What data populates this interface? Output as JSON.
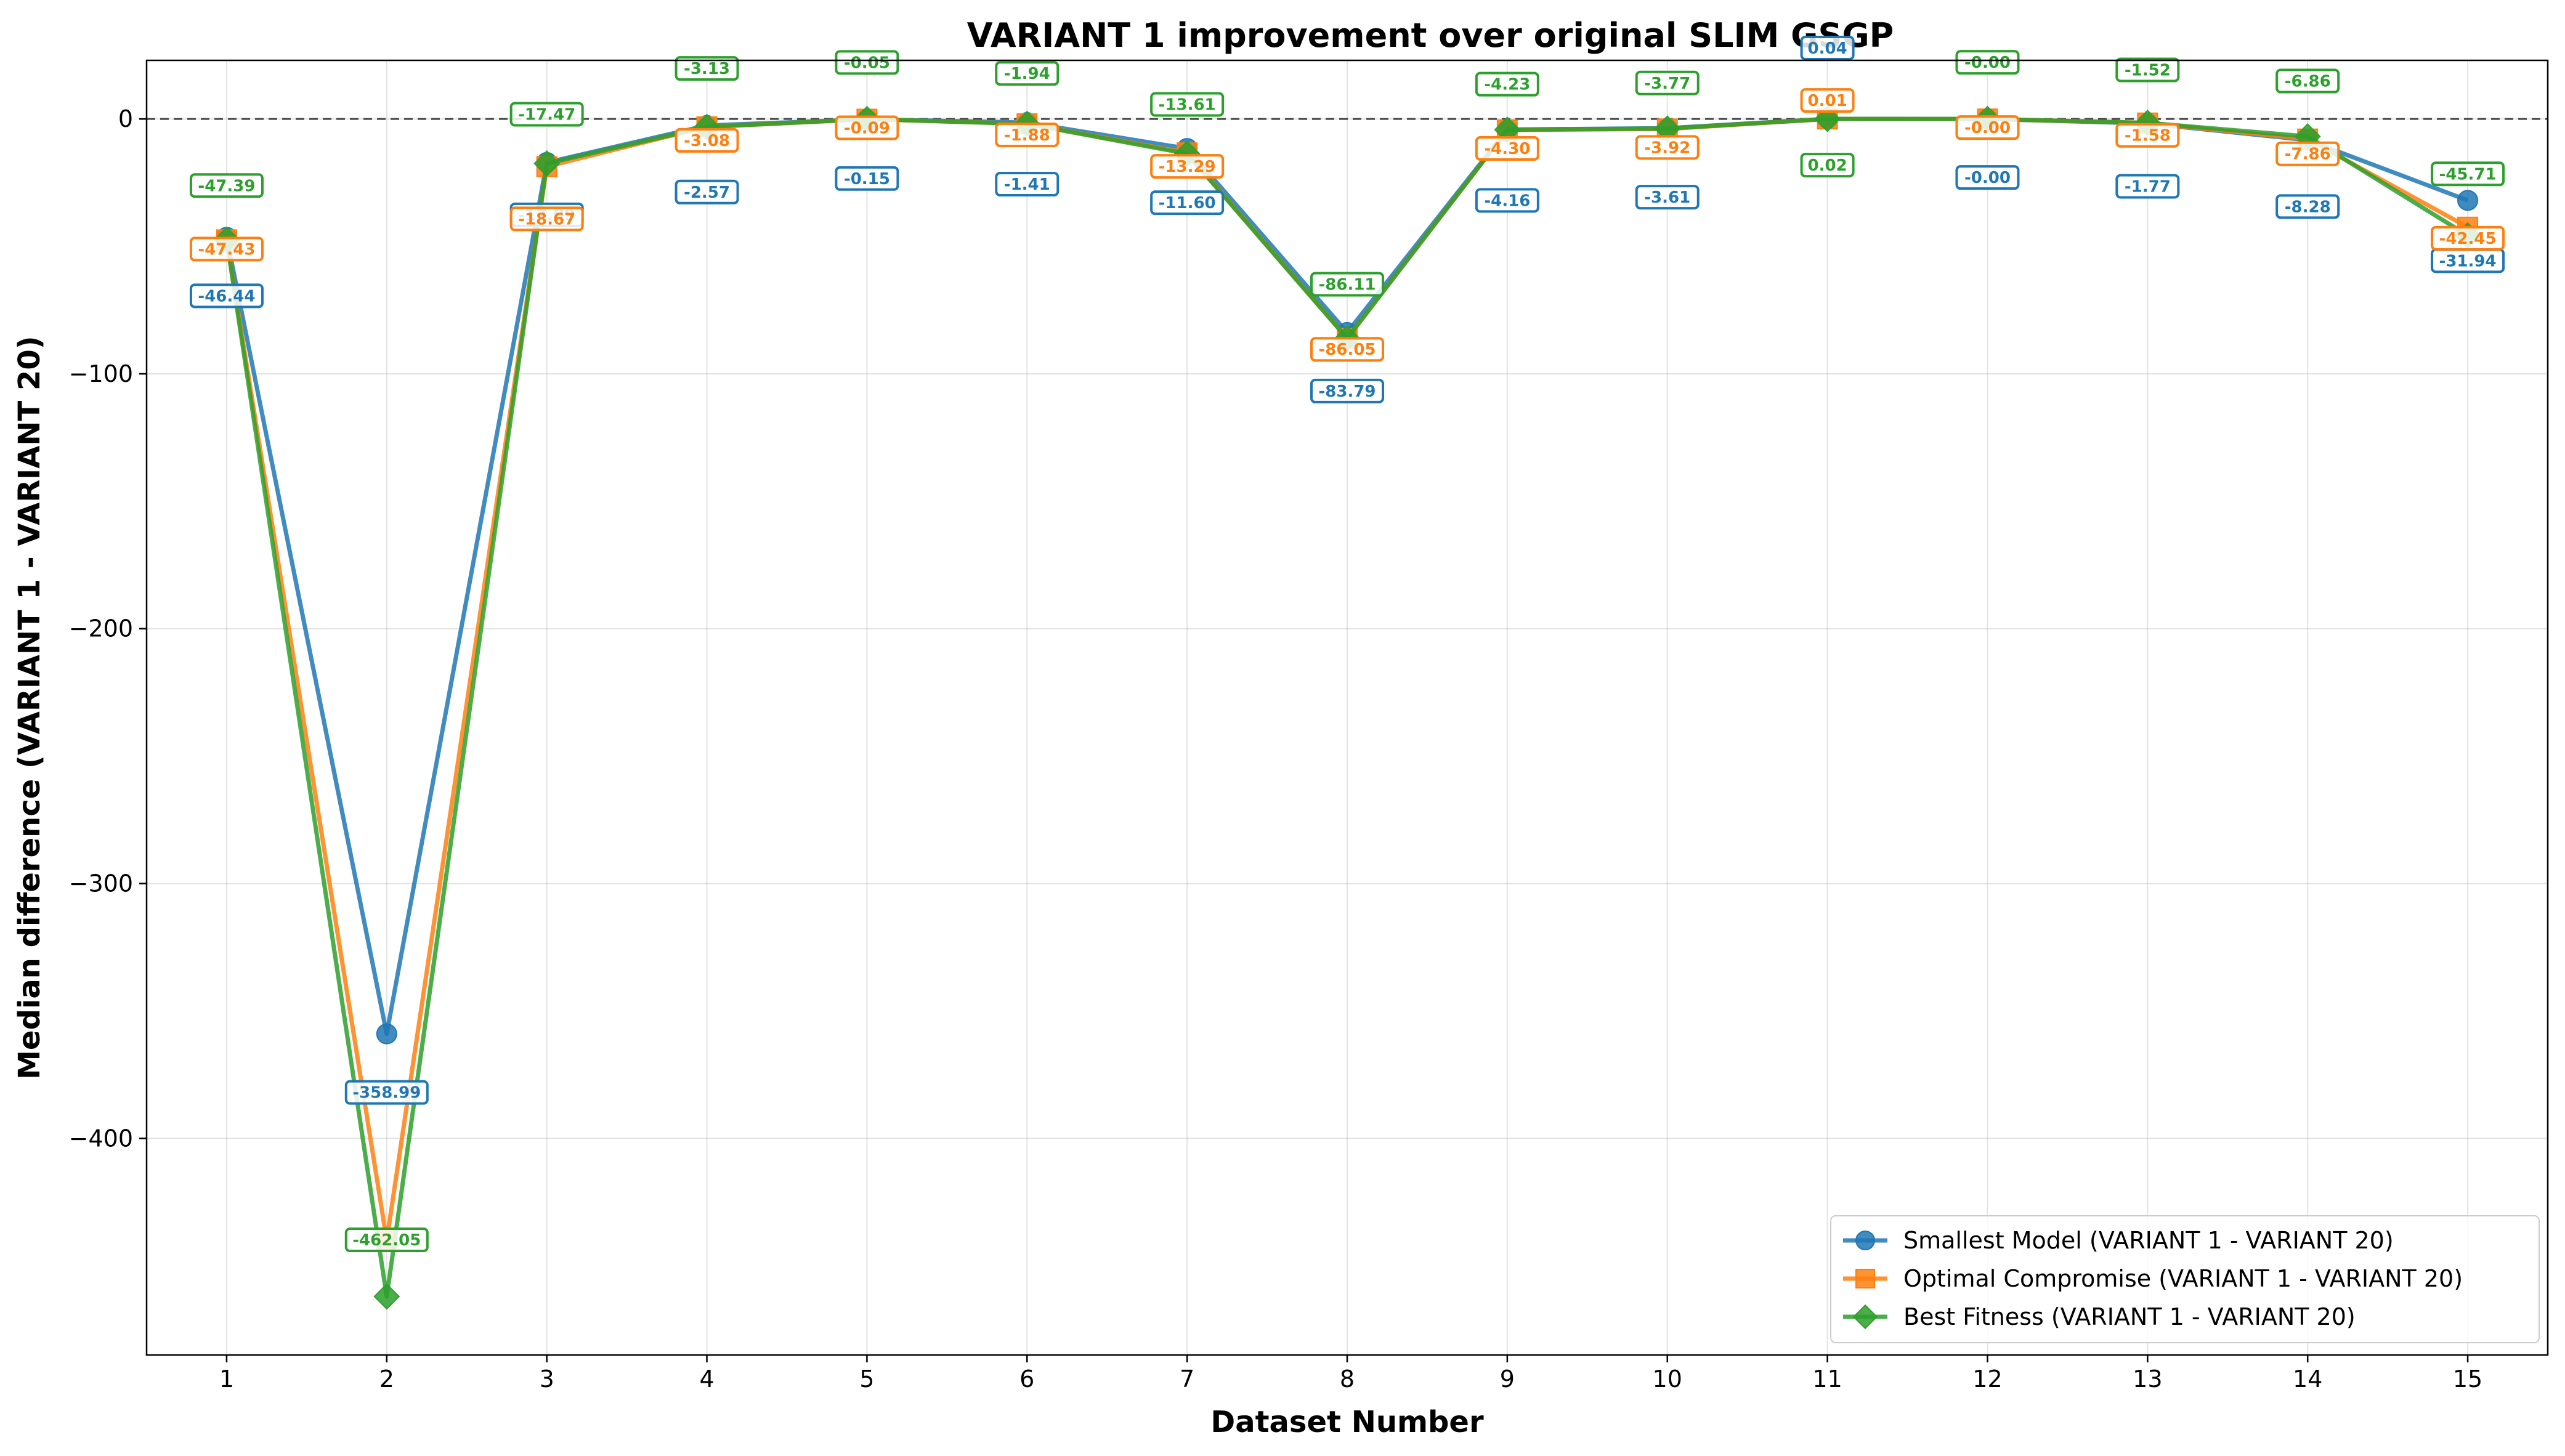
{
  "chart_data": {
    "type": "line",
    "title": "VARIANT 1 improvement over original SLIM GSGP",
    "xlabel": "Dataset Number",
    "ylabel": "Median difference (VARIANT 1 - VARIANT 20)",
    "x": [
      1,
      2,
      3,
      4,
      5,
      6,
      7,
      8,
      9,
      10,
      11,
      12,
      13,
      14,
      15
    ],
    "xlim": [
      0.5,
      15.5
    ],
    "ylim": [
      -485,
      23
    ],
    "yticks": [
      0,
      -100,
      -200,
      -300,
      -400
    ],
    "ytick_labels": [
      "0",
      "−100",
      "−200",
      "−300",
      "−400"
    ],
    "grid": true,
    "reference_line": 0,
    "legend_position": "lower-right",
    "series": [
      {
        "name": "Smallest Model (VARIANT 1 - VARIANT 20)",
        "color": "#1f77b4",
        "marker": "circle",
        "values": [
          -46.44,
          -358.99,
          -17.09,
          -2.57,
          -0.15,
          -1.41,
          -11.6,
          -83.79,
          -4.16,
          -3.61,
          0.04,
          -0.0,
          -1.77,
          -8.28,
          -31.94
        ],
        "labels": [
          "-46.44",
          "-358.99",
          "-17.09",
          "-2.57",
          "-0.15",
          "-1.41",
          "-11.60",
          "-83.79",
          "-4.16",
          "-3.61",
          "0.04",
          "-0.00",
          "-1.77",
          "-8.28",
          "-31.94"
        ]
      },
      {
        "name": "Optimal Compromise (VARIANT 1 - VARIANT 20)",
        "color": "#ff7f0e",
        "marker": "square",
        "values": [
          -47.43,
          -440.0,
          -18.67,
          -3.08,
          -0.09,
          -1.88,
          -13.29,
          -86.05,
          -4.3,
          -3.92,
          0.01,
          -0.0,
          -1.58,
          -7.86,
          -42.45
        ],
        "labels": [
          "-47.43",
          "",
          "-18.67",
          "-3.08",
          "-0.09",
          "-1.88",
          "-13.29",
          "-86.05",
          "-4.30",
          "-3.92",
          "0.01",
          "-0.00",
          "-1.58",
          "-7.86",
          "-42.45"
        ]
      },
      {
        "name": "Best Fitness (VARIANT 1 - VARIANT 20)",
        "color": "#2ca02c",
        "marker": "diamond",
        "values": [
          -47.39,
          -462.05,
          -17.47,
          -3.13,
          -0.05,
          -1.94,
          -13.61,
          -86.11,
          -4.23,
          -3.77,
          0.02,
          -0.0,
          -1.52,
          -6.86,
          -45.71
        ],
        "labels": [
          "-47.39",
          "-462.05",
          "-17.47",
          "-3.13",
          "-0.05",
          "-1.94",
          "-13.61",
          "-86.11",
          "-4.23",
          "-3.77",
          "0.02",
          "-0.00",
          "-1.52",
          "-6.86",
          "-45.71"
        ]
      }
    ]
  }
}
